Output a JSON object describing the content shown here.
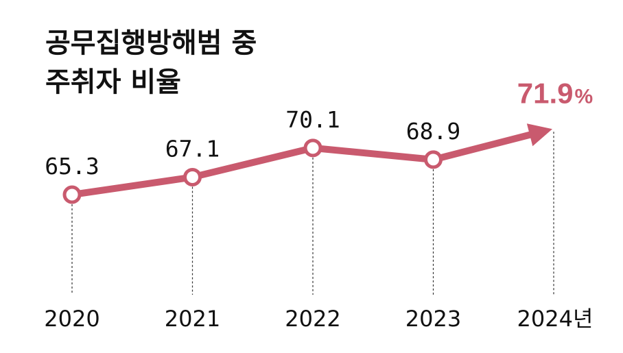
{
  "title": {
    "line1": "공무집행방해범 중",
    "line2": "주취자 비율"
  },
  "chart_data": {
    "type": "line",
    "title": "공무집행방해범 중 주취자 비율",
    "categories": [
      "2020",
      "2021",
      "2022",
      "2023",
      "2024년"
    ],
    "values": [
      65.3,
      67.1,
      70.1,
      68.9,
      71.9
    ],
    "value_labels": [
      "65.3",
      "67.1",
      "70.1",
      "68.9",
      "71.9"
    ],
    "highlight": {
      "value": "71.9",
      "unit": "%"
    },
    "grid": false,
    "legend": "none"
  },
  "colors": {
    "line": "#c95a6e",
    "marker_fill": "#ffffff",
    "text": "#111111",
    "guide": "#333333"
  }
}
